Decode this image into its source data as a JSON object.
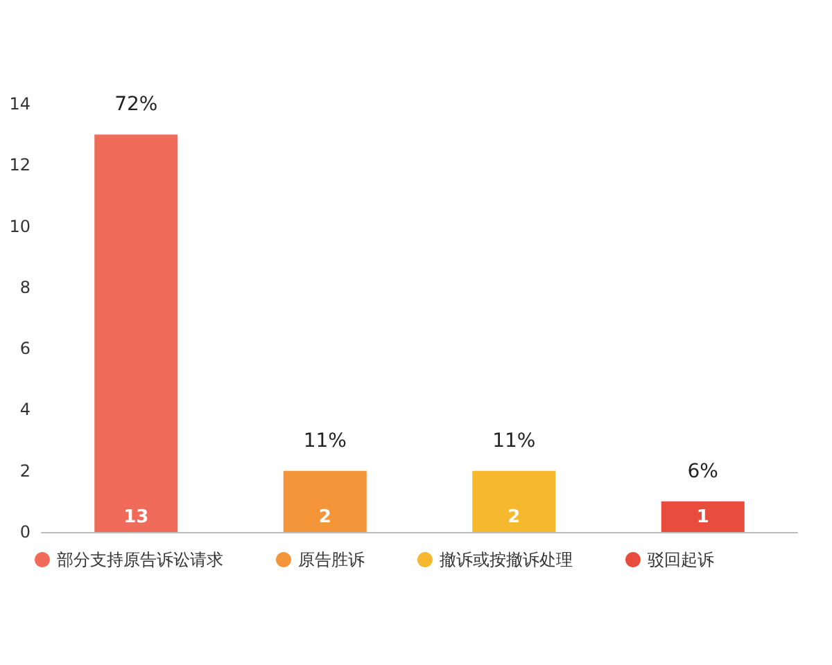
{
  "chart_data": {
    "type": "bar",
    "categories": [
      null,
      null,
      null,
      null
    ],
    "series": [
      {
        "name": "部分支持原告诉讼请求",
        "color": "#f06b5a",
        "values": [
          13,
          null,
          null,
          null
        ],
        "value_labels": [
          "13",
          null,
          null,
          null
        ]
      },
      {
        "name": "原告胜诉",
        "color": "#f5953a",
        "values": [
          null,
          2,
          null,
          null
        ],
        "value_labels": [
          null,
          "2",
          null,
          null
        ]
      },
      {
        "name": "撤诉或按撤诉处理",
        "color": "#f5b82e",
        "values": [
          null,
          null,
          2,
          null
        ],
        "value_labels": [
          null,
          null,
          "2",
          null
        ]
      },
      {
        "name": "驳回起诉",
        "color": "#e84c3d",
        "values": [
          null,
          null,
          null,
          1
        ],
        "value_labels": [
          null,
          null,
          null,
          "1"
        ]
      }
    ],
    "annotations": [
      {
        "text": "72%",
        "y": 13
      },
      {
        "text": "11%",
        "y": 2
      },
      {
        "text": "11%",
        "y": 2
      },
      {
        "text": "6%",
        "y": 1
      }
    ],
    "ylim": [
      0,
      14
    ],
    "yticks": [
      0,
      2,
      4,
      6,
      8,
      10,
      12,
      14
    ],
    "tick_labels": "y",
    "grid": false,
    "legend": "bottom"
  }
}
